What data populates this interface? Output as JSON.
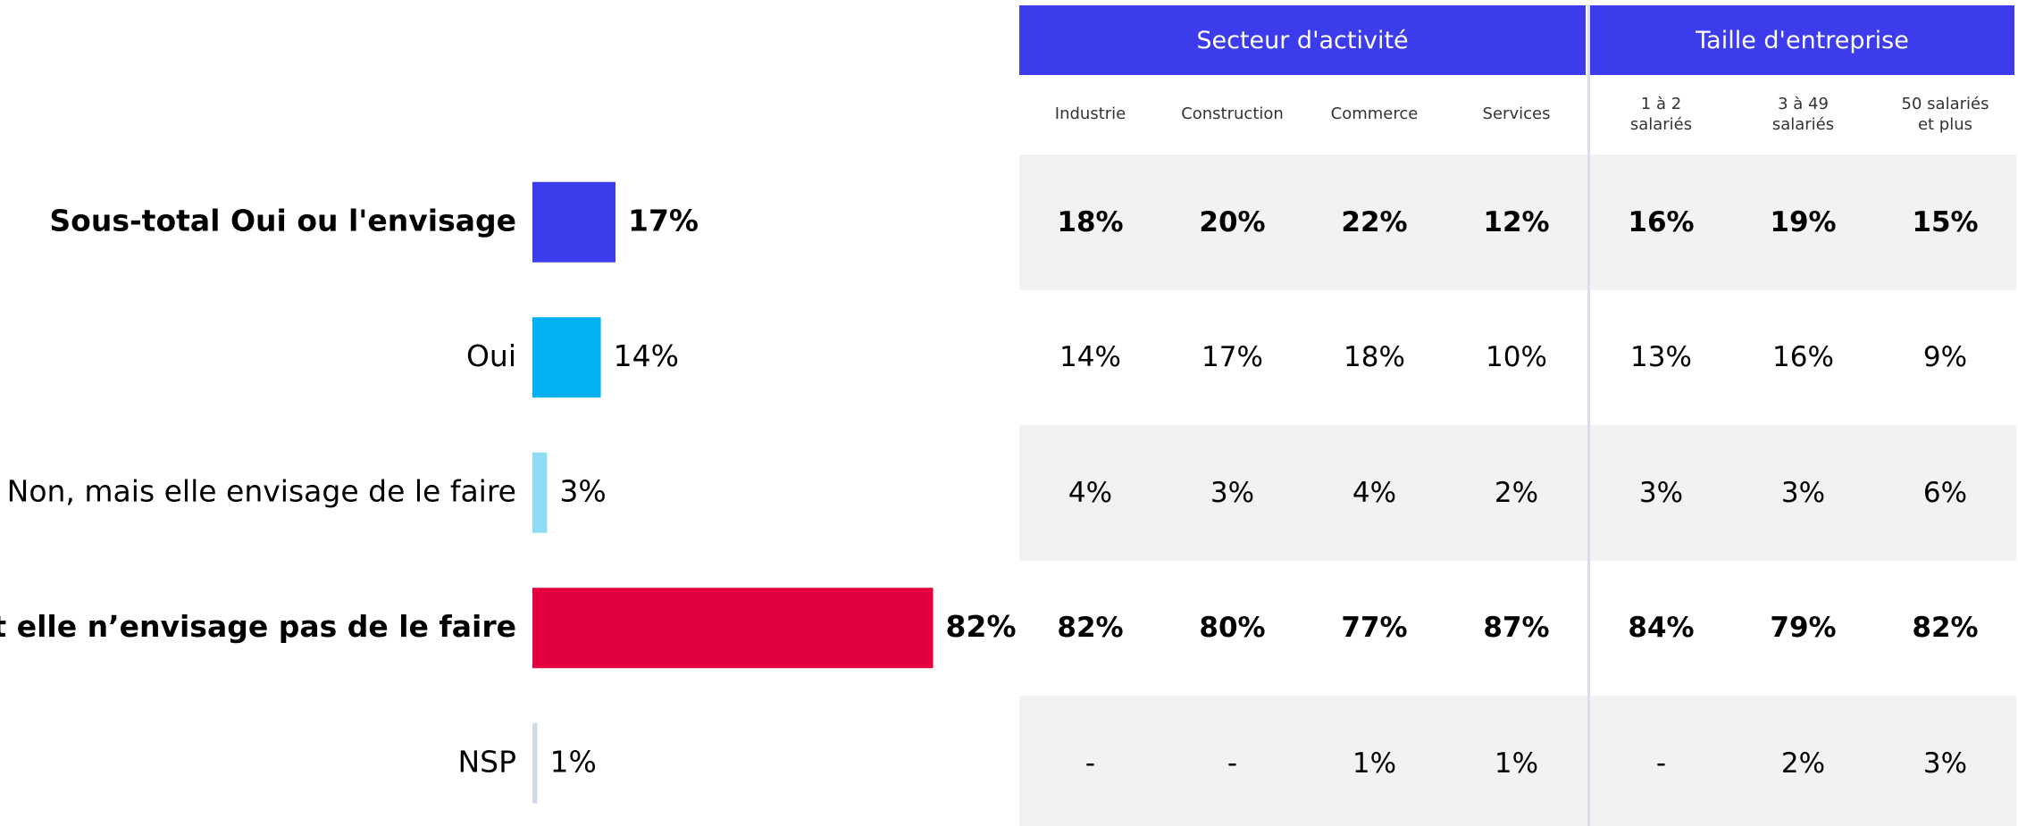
{
  "chart_data": {
    "type": "hbar",
    "categories": [
      "Sous-total Oui ou l'envisage",
      "Oui",
      "Non, mais elle envisage de le faire",
      "Non et elle n’envisage pas de le faire",
      "NSP"
    ],
    "values": [
      17,
      14,
      3,
      82,
      1
    ],
    "value_labels": [
      "17%",
      "14%",
      "3%",
      "82%",
      "1%"
    ],
    "colors": [
      "#3c3cec",
      "#00b0f0",
      "#8fdcf5",
      "#e4003f",
      "#d0d8e8"
    ],
    "bold": [
      true,
      false,
      false,
      true,
      false
    ]
  },
  "table": {
    "groups": [
      {
        "label": "Secteur d'activité",
        "span": 4
      },
      {
        "label": "Taille d'entreprise",
        "span": 3
      }
    ],
    "columns": [
      "Industrie",
      "Construction",
      "Commerce",
      "Services",
      "1 à 2\nsalariés",
      "3 à 49\nsalariés",
      "50 salariés\net plus"
    ],
    "rows": [
      [
        "18%",
        "20%",
        "22%",
        "12%",
        "16%",
        "19%",
        "15%"
      ],
      [
        "14%",
        "17%",
        "18%",
        "10%",
        "13%",
        "16%",
        "9%"
      ],
      [
        "4%",
        "3%",
        "4%",
        "2%",
        "3%",
        "3%",
        "6%"
      ],
      [
        "82%",
        "80%",
        "77%",
        "87%",
        "84%",
        "79%",
        "82%"
      ],
      [
        "-",
        "-",
        "1%",
        "1%",
        "-",
        "2%",
        "3%"
      ]
    ]
  }
}
